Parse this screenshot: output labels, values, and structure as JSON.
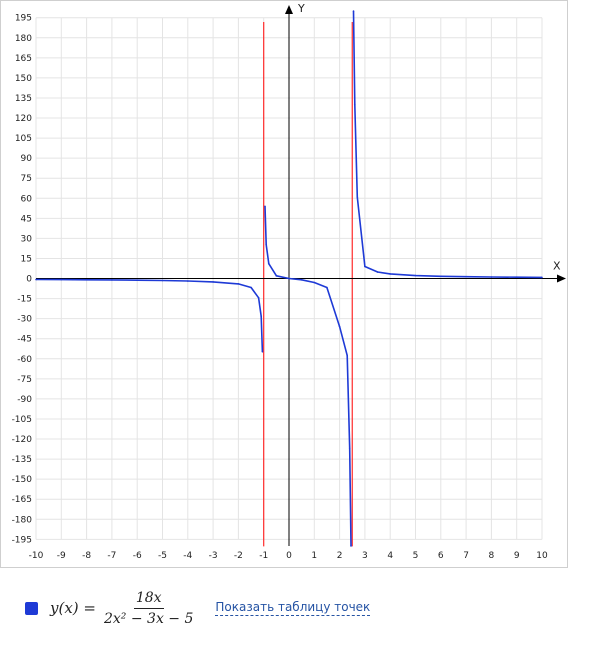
{
  "chart_data": {
    "type": "line",
    "function": "18x / (2x^2 - 3x - 5)",
    "xlim": [
      -10,
      10
    ],
    "ylim": [
      -200,
      200
    ],
    "x_ticks": [
      -10,
      -9,
      -8,
      -7,
      -6,
      -5,
      -4,
      -3,
      -2,
      -1,
      0,
      1,
      2,
      3,
      4,
      5,
      6,
      7,
      8,
      9,
      10
    ],
    "y_ticks": [
      195,
      180,
      165,
      150,
      135,
      120,
      105,
      90,
      75,
      60,
      45,
      30,
      15,
      0,
      -15,
      -30,
      -45,
      -60,
      -75,
      -90,
      -105,
      -120,
      -135,
      -150,
      -165,
      -180,
      -195
    ],
    "xlabel": "X",
    "ylabel": "Y",
    "grid": true,
    "vertical_asymptotes": [
      -1,
      2.5
    ],
    "series": [
      {
        "x": [
          -10,
          -9,
          -8,
          -7,
          -6,
          -5,
          -4,
          -3,
          -2,
          -1.5,
          -1.2,
          -1.1,
          -1.05,
          -0.95,
          -0.9,
          -0.8,
          -0.5,
          0,
          0.5,
          1,
          1.5,
          2,
          2.3,
          2.4,
          2.45,
          2.55,
          2.6,
          2.7,
          3,
          3.5,
          4,
          5,
          6,
          7,
          8,
          9,
          10
        ],
        "values": [
          -0.77,
          -0.84,
          -0.94,
          -1.07,
          -1.24,
          -1.5,
          -1.89,
          -2.57,
          -4,
          -6.75,
          -14.4,
          -28.3,
          -54.8,
          54,
          25.3,
          11.08,
          2,
          0,
          -1,
          -3,
          -6.75,
          -36,
          -57.5,
          -127.3,
          -232.7,
          245.5,
          130,
          60.8,
          9,
          4.85,
          3.43,
          2.2,
          1.64,
          1.32,
          1.1,
          0.95,
          0.83
        ]
      }
    ],
    "colors": {
      "curve": "#1e3ad6",
      "asymptote": "#ff2a2a",
      "axis": "#000000",
      "grid": "#e4e4e4",
      "legend_swatch": "#1e3ad6"
    }
  },
  "legend": {
    "lhs": "y(x) =",
    "numerator": "18x",
    "denominator": "2x² − 3x − 5",
    "link": "Показать таблицу точек"
  }
}
